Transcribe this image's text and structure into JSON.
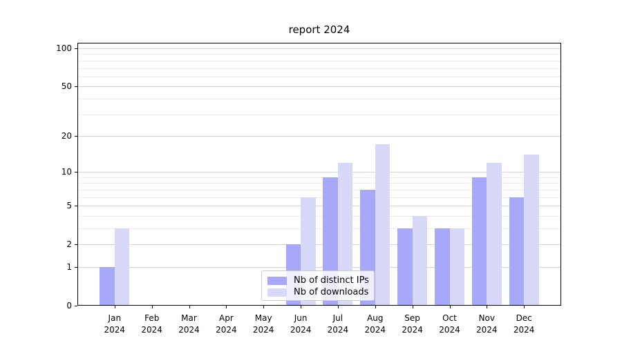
{
  "figure": {
    "title": "report 2024"
  },
  "chart_data": {
    "type": "bar",
    "title": "report 2024",
    "categories": [
      "Jan 2024",
      "Feb 2024",
      "Mar 2024",
      "Apr 2024",
      "May 2024",
      "Jun 2024",
      "Jul 2024",
      "Aug 2024",
      "Sep 2024",
      "Oct 2024",
      "Nov 2024",
      "Dec 2024"
    ],
    "series": [
      {
        "name": "Nb of distinct IPs",
        "color": "#a8a8fa",
        "values": [
          1,
          0,
          0,
          0,
          0,
          2,
          9,
          7,
          3,
          3,
          9,
          6
        ]
      },
      {
        "name": "Nb of downloads",
        "color": "#d8d8f8",
        "values": [
          3,
          0,
          0,
          0,
          0,
          6,
          12,
          17,
          4,
          3,
          12,
          14
        ]
      }
    ],
    "xlabel": "",
    "ylabel": "",
    "yscale": "log1p",
    "ylim": [
      0,
      110
    ],
    "y_major_ticks": [
      0,
      1,
      2,
      5,
      10,
      20,
      50,
      100
    ],
    "y_minor_gridlines": [
      3,
      4,
      6,
      7,
      8,
      9,
      30,
      40,
      60,
      70,
      80,
      90
    ],
    "grid": true,
    "legend_position": "lower center inside plot"
  },
  "colors": {
    "bar_distinct_ips": "#a8a8fa",
    "bar_downloads": "#d8d8f8",
    "axis": "#000000",
    "grid_major": "#d4d4d4",
    "grid_minor": "#ececec"
  }
}
